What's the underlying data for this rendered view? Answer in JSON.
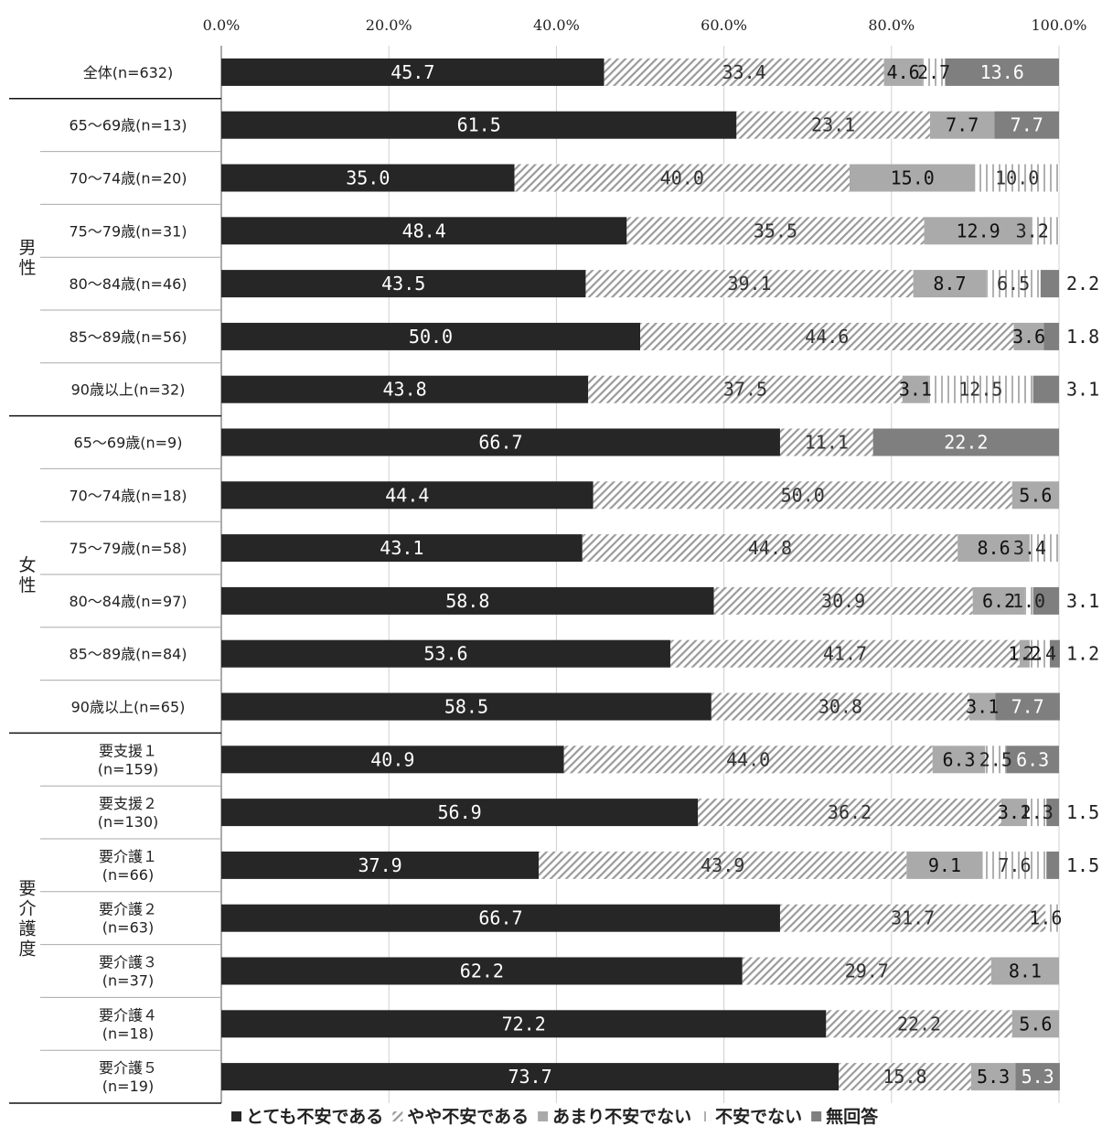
{
  "chart_data": {
    "type": "bar",
    "stacked": true,
    "orientation": "horizontal",
    "x_ticks": [
      "0.0%",
      "20.0%",
      "40.0%",
      "60.0%",
      "80.0%",
      "100.0%"
    ],
    "xlim": [
      0,
      100
    ],
    "grid": true,
    "legend_position": "bottom",
    "series": [
      {
        "name": "とても不安である",
        "color": "#262626",
        "pattern": "solid"
      },
      {
        "name": "やや不安である",
        "color": "#bdbdbd",
        "pattern": "diagonal"
      },
      {
        "name": "あまり不安でない",
        "color": "#aaaaaa",
        "pattern": "solid"
      },
      {
        "name": "不安でない",
        "color": "#bfbfbf",
        "pattern": "vertical"
      },
      {
        "name": "無回答",
        "color": "#7f7f7f",
        "pattern": "solid"
      }
    ],
    "groups": [
      {
        "label": "",
        "start": 0,
        "end": 0
      },
      {
        "label": "男性",
        "start": 1,
        "end": 6
      },
      {
        "label": "女性",
        "start": 7,
        "end": 12
      },
      {
        "label": "要介護度",
        "start": 13,
        "end": 19
      }
    ],
    "categories": [
      {
        "lines": [
          "全体(n=632)"
        ],
        "values": [
          45.7,
          33.4,
          4.6,
          2.7,
          13.6
        ],
        "labels": [
          "45.7",
          "33.4",
          "4.6",
          "2.7",
          "13.6"
        ]
      },
      {
        "lines": [
          "65～69歳(n=13)"
        ],
        "values": [
          61.5,
          23.1,
          7.7,
          0,
          7.7
        ],
        "labels": [
          "61.5",
          "23.1",
          "7.7",
          "",
          "7.7"
        ]
      },
      {
        "lines": [
          "70～74歳(n=20)"
        ],
        "values": [
          35.0,
          40.0,
          15.0,
          10.0,
          0
        ],
        "labels": [
          "35.0",
          "40.0",
          "15.0",
          "10.0",
          ""
        ]
      },
      {
        "lines": [
          "75～79歳(n=31)"
        ],
        "values": [
          48.4,
          35.5,
          12.9,
          3.2,
          0
        ],
        "labels": [
          "48.4",
          "35.5",
          "12.9",
          "3.2",
          ""
        ]
      },
      {
        "lines": [
          "80～84歳(n=46)"
        ],
        "values": [
          43.5,
          39.1,
          8.7,
          6.5,
          2.2
        ],
        "labels": [
          "43.5",
          "39.1",
          "8.7",
          "6.5",
          "2.2"
        ]
      },
      {
        "lines": [
          "85～89歳(n=56)"
        ],
        "values": [
          50.0,
          44.6,
          3.6,
          0,
          1.8
        ],
        "labels": [
          "50.0",
          "44.6",
          "3.6",
          "",
          "1.8"
        ]
      },
      {
        "lines": [
          "90歳以上(n=32)"
        ],
        "values": [
          43.8,
          37.5,
          3.1,
          12.5,
          3.1
        ],
        "labels": [
          "43.8",
          "37.5",
          "3.1",
          "12.5",
          "3.1"
        ]
      },
      {
        "lines": [
          "65～69歳(n=9)"
        ],
        "values": [
          66.7,
          11.1,
          0,
          0,
          22.2
        ],
        "labels": [
          "66.7",
          "11.1",
          "",
          "",
          "22.2"
        ]
      },
      {
        "lines": [
          "70～74歳(n=18)"
        ],
        "values": [
          44.4,
          50.0,
          5.6,
          0,
          0
        ],
        "labels": [
          "44.4",
          "50.0",
          "5.6",
          "",
          ""
        ]
      },
      {
        "lines": [
          "75～79歳(n=58)"
        ],
        "values": [
          43.1,
          44.8,
          8.6,
          3.4,
          0
        ],
        "labels": [
          "43.1",
          "44.8",
          "8.6",
          "3.4",
          ""
        ]
      },
      {
        "lines": [
          "80～84歳(n=97)"
        ],
        "values": [
          58.8,
          30.9,
          6.2,
          1.0,
          3.1
        ],
        "labels": [
          "58.8",
          "30.9",
          "6.2",
          "1.0",
          "3.1"
        ]
      },
      {
        "lines": [
          "85～89歳(n=84)"
        ],
        "values": [
          53.6,
          41.7,
          1.2,
          2.4,
          1.2
        ],
        "labels": [
          "53.6",
          "41.7",
          "1.2",
          "2.4",
          "1.2"
        ]
      },
      {
        "lines": [
          "90歳以上(n=65)"
        ],
        "values": [
          58.5,
          30.8,
          3.1,
          0,
          7.7
        ],
        "labels": [
          "58.5",
          "30.8",
          "3.1",
          "",
          "7.7"
        ]
      },
      {
        "lines": [
          "要支援１",
          "(n=159)"
        ],
        "values": [
          40.9,
          44.0,
          6.3,
          2.5,
          6.3
        ],
        "labels": [
          "40.9",
          "44.0",
          "6.3",
          "2.5",
          "6.3"
        ]
      },
      {
        "lines": [
          "要支援２",
          "(n=130)"
        ],
        "values": [
          56.9,
          36.2,
          3.1,
          2.3,
          1.5
        ],
        "labels": [
          "56.9",
          "36.2",
          "3.1",
          "2.3",
          "1.5"
        ]
      },
      {
        "lines": [
          "要介護１",
          "(n=66)"
        ],
        "values": [
          37.9,
          43.9,
          9.1,
          7.6,
          1.5
        ],
        "labels": [
          "37.9",
          "43.9",
          "9.1",
          "7.6",
          "1.5"
        ]
      },
      {
        "lines": [
          "要介護２",
          "(n=63)"
        ],
        "values": [
          66.7,
          31.7,
          0,
          1.6,
          0
        ],
        "labels": [
          "66.7",
          "31.7",
          "",
          "1.6",
          ""
        ]
      },
      {
        "lines": [
          "要介護３",
          "(n=37)"
        ],
        "values": [
          62.2,
          29.7,
          8.1,
          0,
          0
        ],
        "labels": [
          "62.2",
          "29.7",
          "8.1",
          "",
          ""
        ]
      },
      {
        "lines": [
          "要介護４",
          "(n=18)"
        ],
        "values": [
          72.2,
          22.2,
          5.6,
          0,
          0
        ],
        "labels": [
          "72.2",
          "22.2",
          "5.6",
          "",
          ""
        ]
      },
      {
        "lines": [
          "要介護５",
          "(n=19)"
        ],
        "values": [
          73.7,
          15.8,
          5.3,
          0,
          5.3
        ],
        "labels": [
          "73.7",
          "15.8",
          "5.3",
          "",
          "5.3"
        ]
      }
    ]
  }
}
